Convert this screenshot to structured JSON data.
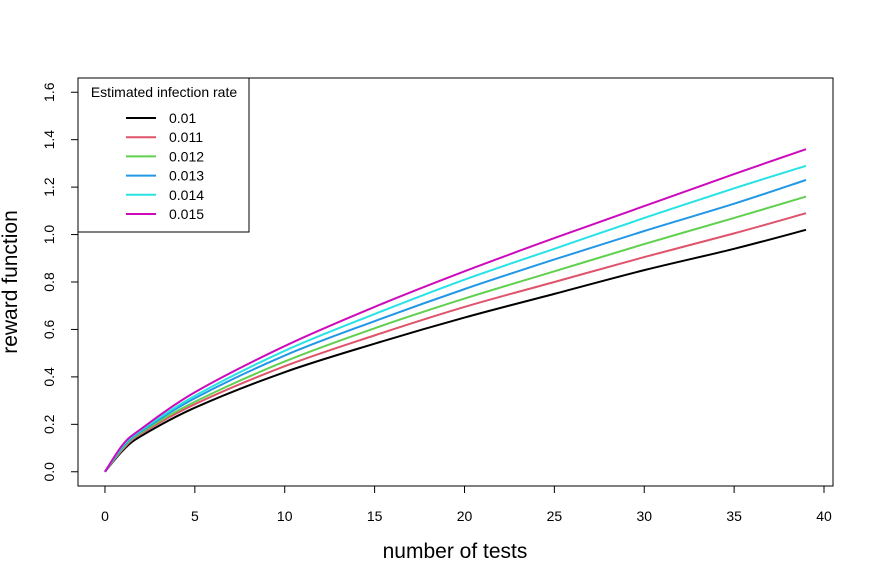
{
  "chart_data": {
    "type": "line",
    "title": "",
    "xlabel": "number of tests",
    "ylabel": "reward function",
    "xlim": [
      -1.5,
      40.5
    ],
    "ylim": [
      -0.06,
      1.66
    ],
    "xticks": [
      0,
      5,
      10,
      15,
      20,
      25,
      30,
      35,
      40
    ],
    "xtick_labels": [
      "0",
      "5",
      "10",
      "15",
      "20",
      "25",
      "30",
      "35",
      "40"
    ],
    "yticks": [
      0.0,
      0.2,
      0.4,
      0.6,
      0.8,
      1.0,
      1.2,
      1.4,
      1.6
    ],
    "ytick_labels": [
      "0.0",
      "0.2",
      "0.4",
      "0.6",
      "0.8",
      "1.0",
      "1.2",
      "1.4",
      "1.6"
    ],
    "grid": false,
    "legend": {
      "title": "Estimated infection rate",
      "position": "top-left"
    },
    "x": [
      0,
      1,
      2,
      5,
      10,
      15,
      20,
      25,
      30,
      35,
      39
    ],
    "series": [
      {
        "name": "0.01",
        "color": "#000000",
        "values": [
          0,
          0.09,
          0.15,
          0.27,
          0.42,
          0.54,
          0.65,
          0.75,
          0.85,
          0.94,
          1.02
        ]
      },
      {
        "name": "0.011",
        "color": "#DF536B",
        "values": [
          0,
          0.095,
          0.16,
          0.285,
          0.445,
          0.575,
          0.695,
          0.8,
          0.905,
          1.005,
          1.09
        ]
      },
      {
        "name": "0.012",
        "color": "#61D04F",
        "values": [
          0,
          0.1,
          0.165,
          0.295,
          0.465,
          0.605,
          0.73,
          0.845,
          0.96,
          1.07,
          1.16
        ]
      },
      {
        "name": "0.013",
        "color": "#2297E6",
        "values": [
          0,
          0.105,
          0.17,
          0.31,
          0.49,
          0.635,
          0.77,
          0.895,
          1.015,
          1.13,
          1.23
        ]
      },
      {
        "name": "0.014",
        "color": "#28E2E5",
        "values": [
          0,
          0.11,
          0.175,
          0.32,
          0.51,
          0.665,
          0.81,
          0.94,
          1.07,
          1.195,
          1.29
        ]
      },
      {
        "name": "0.015",
        "color": "#CD0BBC",
        "values": [
          0,
          0.115,
          0.18,
          0.335,
          0.53,
          0.695,
          0.845,
          0.985,
          1.12,
          1.255,
          1.36
        ]
      }
    ]
  }
}
